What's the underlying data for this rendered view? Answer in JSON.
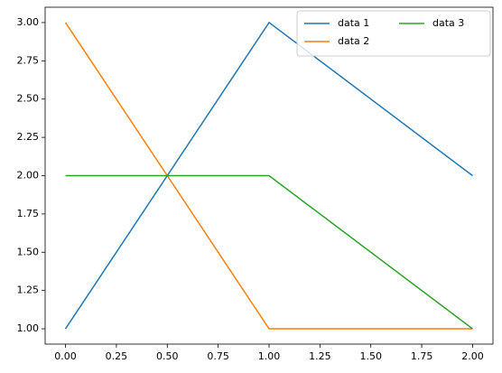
{
  "chart_data": {
    "type": "line",
    "x": [
      0,
      1,
      2
    ],
    "series": [
      {
        "name": "data 1",
        "color": "#1f77b4",
        "values": [
          1,
          3,
          2
        ]
      },
      {
        "name": "data 2",
        "color": "#ff7f0e",
        "values": [
          3,
          1,
          1
        ]
      },
      {
        "name": "data 3",
        "color": "#2ca02c",
        "values": [
          2,
          2,
          1
        ]
      }
    ],
    "xlim": [
      -0.1,
      2.1
    ],
    "ylim": [
      0.9,
      3.1
    ],
    "xticks": [
      {
        "value": 0,
        "label": "0.00"
      },
      {
        "value": 0.25,
        "label": "0.25"
      },
      {
        "value": 0.5,
        "label": "0.50"
      },
      {
        "value": 0.75,
        "label": "0.75"
      },
      {
        "value": 1,
        "label": "1.00"
      },
      {
        "value": 1.25,
        "label": "1.25"
      },
      {
        "value": 1.5,
        "label": "1.50"
      },
      {
        "value": 1.75,
        "label": "1.75"
      },
      {
        "value": 2,
        "label": "2.00"
      }
    ],
    "yticks": [
      {
        "value": 1,
        "label": "1.00"
      },
      {
        "value": 1.25,
        "label": "1.25"
      },
      {
        "value": 1.5,
        "label": "1.50"
      },
      {
        "value": 1.75,
        "label": "1.75"
      },
      {
        "value": 2,
        "label": "2.00"
      },
      {
        "value": 2.25,
        "label": "2.25"
      },
      {
        "value": 2.5,
        "label": "2.50"
      },
      {
        "value": 2.75,
        "label": "2.75"
      },
      {
        "value": 3,
        "label": "3.00"
      }
    ],
    "grid": false,
    "legend": "upper right",
    "legend_columns": 2
  }
}
